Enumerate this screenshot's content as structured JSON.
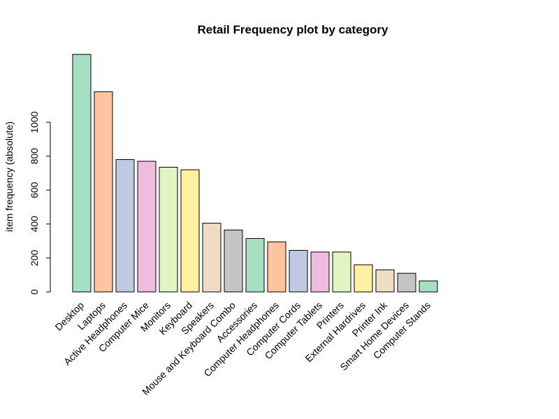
{
  "chart_data": {
    "type": "bar",
    "title": "Retail Frequency plot by category",
    "xlabel": "",
    "ylabel": "item frequency (absolute)",
    "ylim": [
      0,
      1400
    ],
    "yticks": [
      0,
      200,
      400,
      600,
      800,
      1000
    ],
    "grid": false,
    "legend": "none",
    "categories": [
      "Desktop",
      "Laptops",
      "Active Headphones",
      "Computer Mice",
      "Monitors",
      "Keyboard",
      "Speakers",
      "Mouse and Keyboard Combo",
      "Accessories",
      "Computer Headphones",
      "Computer Cords",
      "Computer Tablets",
      "Printers",
      "External Hardrives",
      "Printer Ink",
      "Smart Home Devices",
      "Computer Stands"
    ],
    "values": [
      1400,
      1180,
      780,
      770,
      735,
      720,
      405,
      365,
      315,
      295,
      245,
      235,
      235,
      160,
      130,
      110,
      65
    ],
    "colors": [
      "#A6DFC4",
      "#FCC59D",
      "#BFCAE2",
      "#EDBCDF",
      "#E0F5C1",
      "#FEF0A1",
      "#EEDDC3",
      "#C4C4C4",
      "#A6DFC4",
      "#FCC59D",
      "#BFCAE2",
      "#EDBCDF",
      "#E0F5C1",
      "#FEF0A1",
      "#EEDDC3",
      "#C4C4C4",
      "#A6DFC4"
    ]
  }
}
